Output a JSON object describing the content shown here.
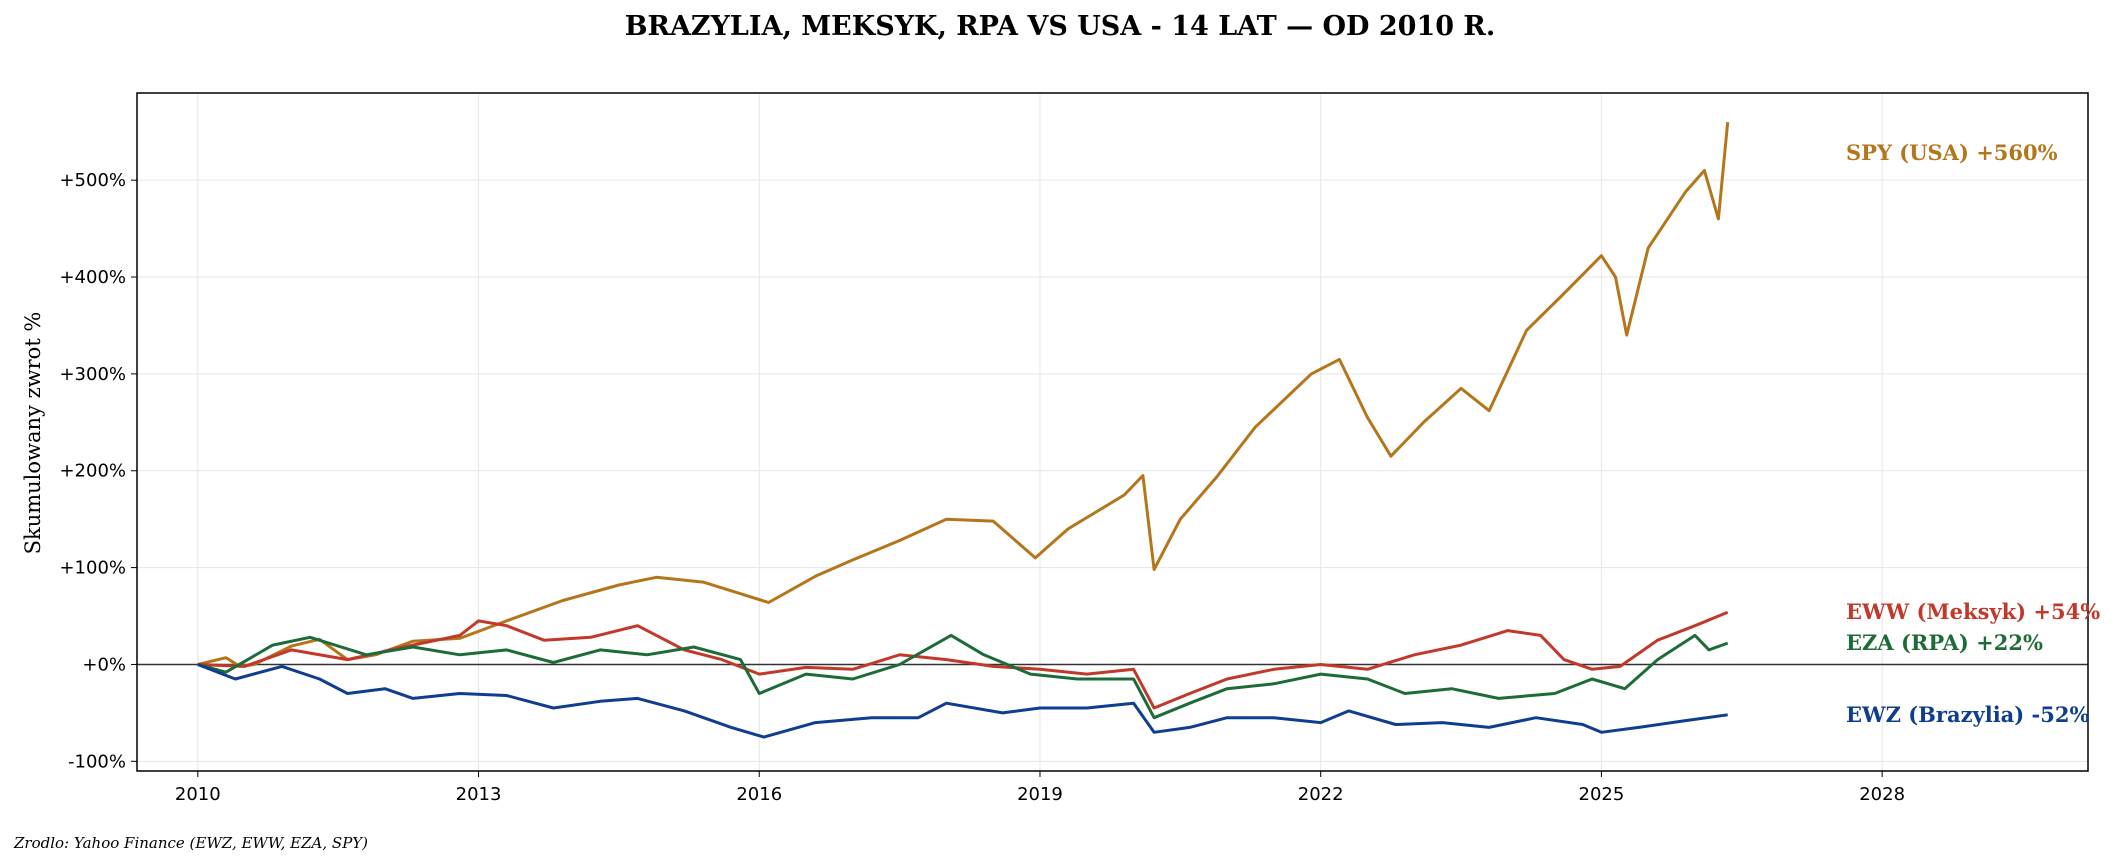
{
  "chart_data": {
    "type": "line",
    "title": "BRAZYLIA, MEKSYK, RPA VS USA - 14 LAT — OD 2010 R.",
    "xlabel": "",
    "ylabel": "Skumulowany zwrot %",
    "xlim": [
      2009.35,
      2030.2
    ],
    "ylim": [
      -110,
      590
    ],
    "x_ticks": [
      2010,
      2013,
      2016,
      2019,
      2022,
      2025,
      2028
    ],
    "x_tick_labels": [
      "2010",
      "2013",
      "2016",
      "2019",
      "2022",
      "2025",
      "2028"
    ],
    "y_ticks": [
      -100,
      0,
      100,
      200,
      300,
      400,
      500
    ],
    "y_tick_labels": [
      "-100%",
      "+0%",
      "+100%",
      "+200%",
      "+300%",
      "+400%",
      "+500%"
    ],
    "grid": true,
    "zero_line": true,
    "legend": "none",
    "series": [
      {
        "name": "SPY (USA)",
        "end_label": "SPY (USA)  +560%",
        "color": "#b5761b",
        "x": [
          2010.0,
          2010.3,
          2010.45,
          2010.6,
          2011.0,
          2011.3,
          2011.6,
          2011.9,
          2012.3,
          2012.8,
          2013.3,
          2013.9,
          2014.5,
          2014.9,
          2015.4,
          2015.7,
          2016.1,
          2016.6,
          2017.0,
          2017.5,
          2018.0,
          2018.5,
          2018.95,
          2019.3,
          2019.9,
          2020.1,
          2020.22,
          2020.5,
          2020.9,
          2021.3,
          2021.9,
          2022.2,
          2022.5,
          2022.75,
          2023.1,
          2023.5,
          2023.8,
          2024.2,
          2024.6,
          2025.0,
          2025.15,
          2025.27,
          2025.5,
          2025.9,
          2026.1,
          2026.25,
          2026.35
        ],
        "y": [
          0,
          7,
          -2,
          0,
          19,
          26,
          5,
          10,
          24,
          27,
          45,
          66,
          82,
          90,
          85,
          76,
          64,
          91,
          108,
          128,
          150,
          148,
          110,
          140,
          175,
          195,
          98,
          150,
          195,
          245,
          300,
          315,
          255,
          215,
          250,
          285,
          262,
          345,
          383,
          422,
          400,
          340,
          430,
          488,
          510,
          460,
          560
        ]
      },
      {
        "name": "EWW (Meksyk)",
        "end_label": "EWW (Meksyk)  +54%",
        "color": "#c0392b",
        "x": [
          2010.0,
          2010.5,
          2011.0,
          2011.6,
          2012.2,
          2012.8,
          2013.0,
          2013.3,
          2013.7,
          2014.2,
          2014.7,
          2015.2,
          2015.6,
          2016.0,
          2016.5,
          2017.0,
          2017.5,
          2018.0,
          2018.5,
          2019.0,
          2019.5,
          2020.0,
          2020.22,
          2020.6,
          2021.0,
          2021.5,
          2022.0,
          2022.5,
          2023.0,
          2023.5,
          2024.0,
          2024.35,
          2024.6,
          2024.9,
          2025.2,
          2025.6,
          2026.0,
          2026.35
        ],
        "y": [
          0,
          -2,
          15,
          5,
          18,
          30,
          45,
          40,
          25,
          28,
          40,
          15,
          5,
          -10,
          -3,
          -5,
          10,
          5,
          -2,
          -5,
          -10,
          -5,
          -45,
          -30,
          -15,
          -5,
          0,
          -5,
          10,
          20,
          35,
          30,
          5,
          -5,
          -2,
          25,
          40,
          54
        ]
      },
      {
        "name": "EZA (RPA)",
        "end_label": "EZA (RPA)  +22%",
        "color": "#1e6b3a",
        "x": [
          2010.0,
          2010.3,
          2010.8,
          2011.2,
          2011.8,
          2012.3,
          2012.8,
          2013.3,
          2013.8,
          2014.3,
          2014.8,
          2015.3,
          2015.8,
          2016.0,
          2016.5,
          2017.0,
          2017.5,
          2018.05,
          2018.4,
          2018.9,
          2019.4,
          2020.0,
          2020.22,
          2020.6,
          2021.0,
          2021.5,
          2022.0,
          2022.5,
          2022.9,
          2023.4,
          2023.9,
          2024.5,
          2024.9,
          2025.25,
          2025.6,
          2026.0,
          2026.15,
          2026.35
        ],
        "y": [
          0,
          -8,
          20,
          28,
          10,
          18,
          10,
          15,
          2,
          15,
          10,
          18,
          5,
          -30,
          -10,
          -15,
          0,
          30,
          10,
          -10,
          -15,
          -15,
          -55,
          -40,
          -25,
          -20,
          -10,
          -15,
          -30,
          -25,
          -35,
          -30,
          -15,
          -25,
          5,
          30,
          15,
          22
        ]
      },
      {
        "name": "EWZ (Brazylia)",
        "end_label": "EWZ (Brazylia)  -52%",
        "color": "#0f3d8f",
        "x": [
          2010.0,
          2010.4,
          2010.9,
          2011.3,
          2011.6,
          2012.0,
          2012.3,
          2012.8,
          2013.3,
          2013.8,
          2014.3,
          2014.7,
          2015.2,
          2015.7,
          2016.05,
          2016.6,
          2017.2,
          2017.7,
          2018.0,
          2018.6,
          2019.0,
          2019.5,
          2020.0,
          2020.22,
          2020.6,
          2021.0,
          2021.5,
          2022.0,
          2022.3,
          2022.8,
          2023.3,
          2023.8,
          2024.3,
          2024.8,
          2025.0,
          2025.4,
          2025.9,
          2026.35
        ],
        "y": [
          0,
          -15,
          -2,
          -15,
          -30,
          -25,
          -35,
          -30,
          -32,
          -45,
          -38,
          -35,
          -48,
          -65,
          -75,
          -60,
          -55,
          -55,
          -40,
          -50,
          -45,
          -45,
          -40,
          -70,
          -65,
          -55,
          -55,
          -60,
          -48,
          -62,
          -60,
          -65,
          -55,
          -62,
          -70,
          -65,
          -58,
          -52
        ]
      }
    ]
  },
  "source_note": "Zrodlo: Yahoo Finance (EWZ, EWW, EZA, SPY)"
}
